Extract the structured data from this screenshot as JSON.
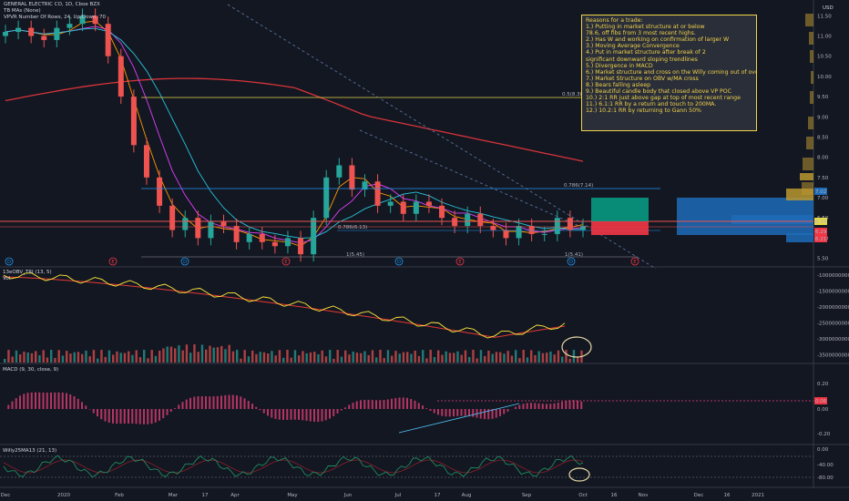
{
  "chart_data": [
    {
      "type": "line",
      "title": "GENERAL ELECTRIC CO, 1D, Cboe BZX",
      "indicator_labels": [
        "TB MAs (None)",
        "VPVR Number Of Rows, 24, Up/Down, 70"
      ],
      "currency": "USD",
      "y_ticks": [
        11.5,
        11.0,
        10.5,
        10.0,
        9.5,
        9.0,
        8.5,
        8.0,
        7.5,
        7.0,
        6.5,
        6.0,
        5.5
      ],
      "ylim": [
        5.4,
        11.8
      ],
      "price_tags": [
        "7.02",
        "6.34",
        "6.29",
        "6.21"
      ],
      "fib_labels": [
        "0.5(8.38)",
        "0.786(7.14)",
        "0.786(6.13)",
        "1(5.45)",
        "1(5.41)"
      ],
      "event_markers": [
        "D",
        "E",
        "D",
        "E",
        "D",
        "E",
        "D",
        "E"
      ],
      "close_series": [
        11.1,
        11.2,
        11.0,
        10.9,
        11.2,
        11.3,
        11.5,
        11.3,
        10.5,
        9.5,
        8.3,
        7.5,
        6.8,
        6.2,
        6.5,
        6.0,
        6.4,
        6.3,
        5.9,
        6.1,
        5.9,
        5.8,
        6.0,
        5.6,
        6.5,
        7.5,
        7.8,
        7.2,
        7.4,
        6.8,
        6.9,
        6.6,
        6.9,
        6.8,
        6.5,
        6.3,
        6.6,
        6.3,
        6.2,
        6.0,
        6.3,
        6.1,
        6.1,
        6.5,
        6.2,
        6.3
      ],
      "annotation": {
        "title": "Reasons for a trade:",
        "lines": [
          "1.) Putting in market structure at or below",
          "78.6, off fibs from 3 most recent highs.",
          "2.) Has W and working on confirmation of larger W",
          "3.) Moving Average Convergence",
          "4.) Put in market structure after break of 2",
          "significant downward sloping trendlines",
          "5.) Divergence in MACD",
          "6.) Market structure and cross on the Willy coming out of oversold",
          "7.) Market Structure on OBV w/MA cross",
          "8.) Bears falling asleep",
          "9.) Beautiful candle body that closed above VP POC",
          "10.) 2:1 RR just above gap at top of most recent range",
          "11.) 6.1:1 RR by a return and touch to 200MA.",
          "12.) 10.2:1 RR by returning to Gann 50%"
        ]
      }
    },
    {
      "type": "line",
      "title": "13eOBV_TRI (13, 5)",
      "sublabel": "Vol",
      "y_ticks": [
        "-1000000000.00",
        "-1500000000.00",
        "-2000000000.00",
        "-2500000000.00",
        "-3000000000.00",
        "-3500000000.00"
      ]
    },
    {
      "type": "bar",
      "title": "MACD (9, 30, close, 9)",
      "y_ticks": [
        "0.20",
        "0.00",
        "-0.20"
      ],
      "price_tag": "0.06"
    },
    {
      "type": "line",
      "title": "Willy25MA13 (21, 13)",
      "y_ticks": [
        "0.00",
        "-40.00",
        "-80.00"
      ]
    }
  ],
  "x_axis": {
    "ticks": [
      "Dec",
      "2020",
      "Feb",
      "Mar",
      "17",
      "Apr",
      "May",
      "Jun",
      "Jul",
      "17",
      "Aug",
      "Sep",
      "Oct",
      "16",
      "Nov",
      "Dec",
      "16",
      "2021"
    ]
  },
  "colors": {
    "background": "#131722",
    "up": "#26a69a",
    "down": "#ef5350",
    "ma200": "#d8343a",
    "note": "#f0d24a",
    "fib_level": "#2196f3",
    "gann": "#e5d94a",
    "obv": "#ffeb3b",
    "willy": "#1f8a5f",
    "vp_up": "#1e6bb8",
    "vp_down": "#b8962f"
  }
}
